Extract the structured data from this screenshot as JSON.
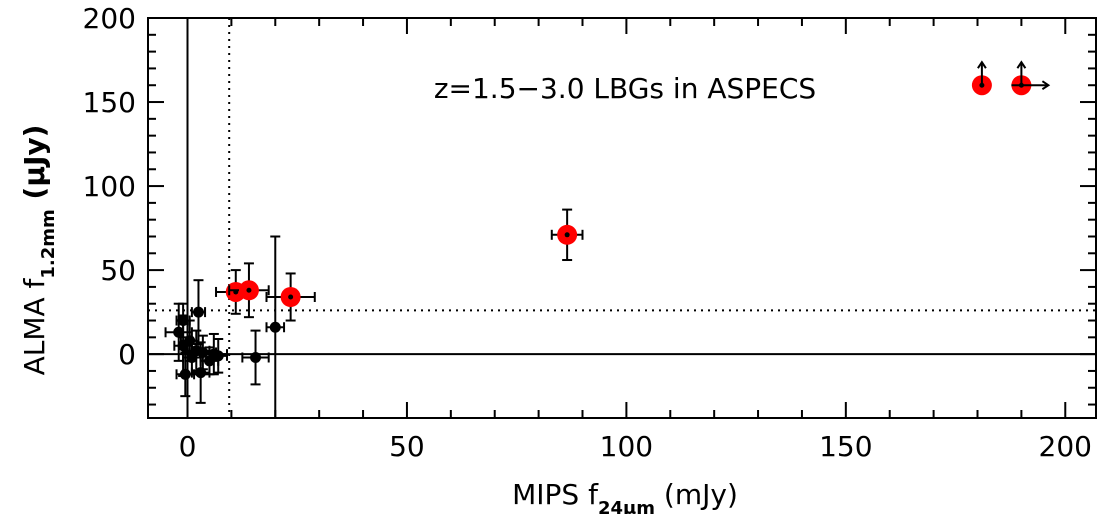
{
  "chart_data": {
    "type": "scatter",
    "annotation": "z=1.5−3.0 LBGs in ASPECS",
    "xlabel": {
      "main": "MIPS f",
      "sub": "24μm",
      "unit": " (mJy)"
    },
    "ylabel": {
      "main": "ALMA f",
      "sub": "1.2mm",
      "unit": " (μJy)"
    },
    "xlim": [
      -9,
      207
    ],
    "ylim": [
      -38,
      200
    ],
    "xticks": [
      0,
      50,
      100,
      150,
      200
    ],
    "yticks": [
      0,
      50,
      100,
      150,
      200
    ],
    "xminor_step": 10,
    "yminor_step": 10,
    "grid": false,
    "reference_lines": {
      "solid_vertical_x": 0,
      "solid_horizontal_y": 0,
      "dotted_vertical_x": 9.5,
      "dotted_horizontal_y": 26
    },
    "colors": {
      "detection": "#ff0000",
      "nondetection": "#000000"
    },
    "detections": [
      {
        "x": 11,
        "y": 37,
        "xerr": 4.5,
        "yerr": 13
      },
      {
        "x": 14,
        "y": 38,
        "xerr": 4.5,
        "yerr": 16
      },
      {
        "x": 23.5,
        "y": 34,
        "xerr": 5.5,
        "yerr": 14
      },
      {
        "x": 86.5,
        "y": 71,
        "xerr": 3.5,
        "yerr": 15
      },
      {
        "x": 181,
        "y": 160,
        "lower_limit_y": true
      },
      {
        "x": 190,
        "y": 160,
        "lower_limit_y": true,
        "lower_limit_x": true
      }
    ],
    "nondetections": [
      {
        "x": -2,
        "y": 13,
        "xerr": 3,
        "yerr": 17
      },
      {
        "x": -1,
        "y": 5,
        "xerr": 2,
        "yerr": 18
      },
      {
        "x": -1,
        "y": 20,
        "xerr": 1.5,
        "yerr": 10
      },
      {
        "x": -0.5,
        "y": -12,
        "xerr": 2,
        "yerr": 13
      },
      {
        "x": 0.5,
        "y": 8,
        "xerr": 2,
        "yerr": 12
      },
      {
        "x": 1,
        "y": -2,
        "xerr": 2,
        "yerr": 10
      },
      {
        "x": 2,
        "y": 2,
        "xerr": 3,
        "yerr": 12
      },
      {
        "x": 2.5,
        "y": 25,
        "xerr": 1.5,
        "yerr": 19
      },
      {
        "x": 3,
        "y": -11,
        "xerr": 2,
        "yerr": 18
      },
      {
        "x": 3.5,
        "y": 1,
        "xerr": 3,
        "yerr": 10
      },
      {
        "x": 5,
        "y": -4,
        "xerr": 2,
        "yerr": 8
      },
      {
        "x": 6,
        "y": 0,
        "xerr": 3,
        "yerr": 12
      },
      {
        "x": 7,
        "y": -1,
        "xerr": 2,
        "yerr": 10
      },
      {
        "x": 15.5,
        "y": -2,
        "xerr": 3,
        "yerr": 16
      },
      {
        "x": 20,
        "y": 16,
        "xerr": 2,
        "yerr": 54
      }
    ]
  }
}
